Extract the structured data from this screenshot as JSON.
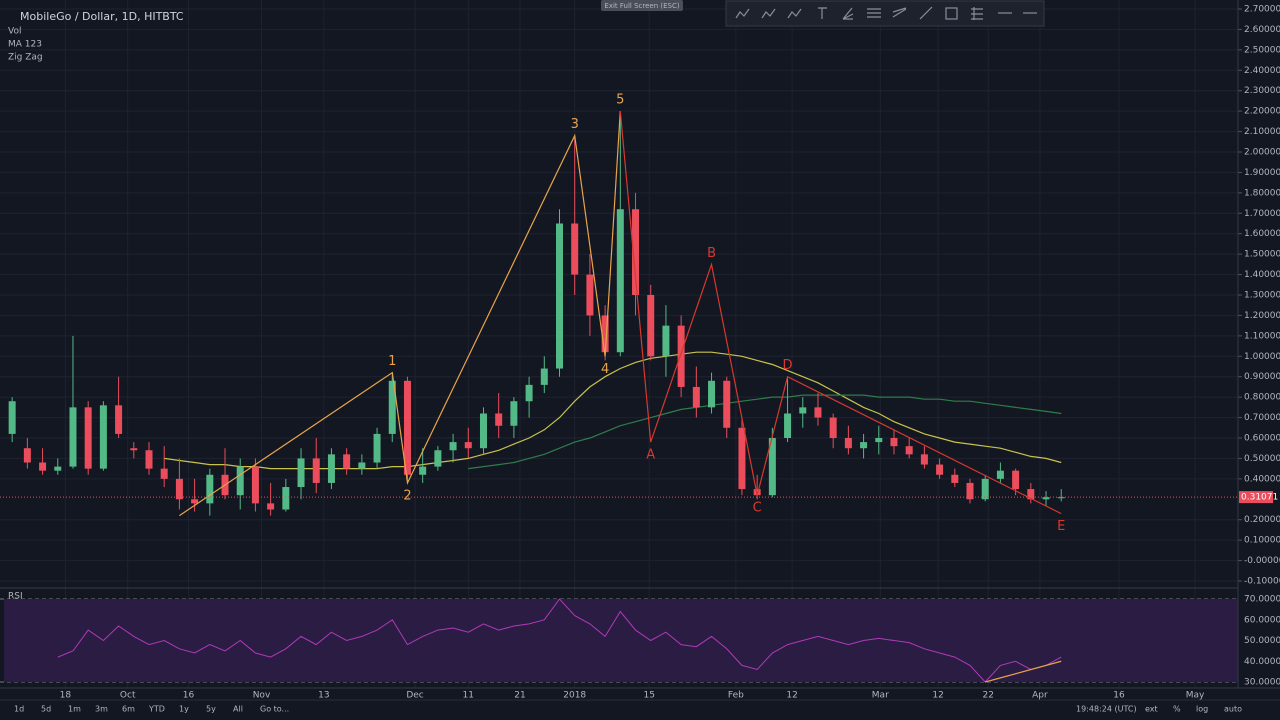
{
  "chart_data": {
    "type": "candlestick",
    "title": "MobileGo / Dollar, 1D, HITBTC",
    "indicators": [
      "Vol",
      "MA 123",
      "Zig Zag"
    ],
    "up_color": "#53b987",
    "down_color": "#eb4d5c",
    "grid": true,
    "candles": {
      "open": [
        0.62,
        0.55,
        0.48,
        0.44,
        0.46,
        0.75,
        0.45,
        0.76,
        0.55,
        0.54,
        0.45,
        0.4,
        0.3,
        0.28,
        0.42,
        0.32,
        0.46,
        0.28,
        0.25,
        0.36,
        0.5,
        0.38,
        0.52,
        0.45,
        0.48,
        0.62,
        0.88,
        0.42,
        0.46,
        0.54,
        0.58,
        0.55,
        0.72,
        0.66,
        0.78,
        0.86,
        0.94,
        1.65,
        1.4,
        1.2,
        1.02,
        1.72,
        1.3,
        1.0,
        1.15,
        0.85,
        0.75,
        0.88,
        0.65,
        0.35,
        0.32,
        0.6,
        0.72,
        0.75,
        0.7,
        0.6,
        0.55,
        0.58,
        0.6,
        0.56,
        0.52,
        0.47,
        0.42,
        0.38,
        0.3,
        0.4,
        0.44,
        0.35,
        0.3,
        0.31
      ],
      "high": [
        0.8,
        0.6,
        0.55,
        0.5,
        1.1,
        0.78,
        0.78,
        0.9,
        0.58,
        0.58,
        0.56,
        0.5,
        0.4,
        0.45,
        0.55,
        0.5,
        0.5,
        0.38,
        0.4,
        0.55,
        0.6,
        0.55,
        0.55,
        0.52,
        0.65,
        0.92,
        0.9,
        0.55,
        0.56,
        0.62,
        0.65,
        0.75,
        0.82,
        0.8,
        0.9,
        1.0,
        1.72,
        2.08,
        1.5,
        1.25,
        2.2,
        1.8,
        1.35,
        1.25,
        1.2,
        0.95,
        0.92,
        0.9,
        0.7,
        0.42,
        0.65,
        0.9,
        0.8,
        0.82,
        0.72,
        0.66,
        0.62,
        0.66,
        0.64,
        0.6,
        0.56,
        0.5,
        0.45,
        0.4,
        0.42,
        0.48,
        0.45,
        0.38,
        0.34,
        0.35
      ],
      "low": [
        0.58,
        0.45,
        0.42,
        0.42,
        0.45,
        0.42,
        0.44,
        0.6,
        0.5,
        0.42,
        0.36,
        0.25,
        0.24,
        0.22,
        0.3,
        0.25,
        0.24,
        0.22,
        0.24,
        0.3,
        0.33,
        0.35,
        0.42,
        0.42,
        0.45,
        0.58,
        0.38,
        0.38,
        0.44,
        0.48,
        0.5,
        0.52,
        0.6,
        0.6,
        0.7,
        0.82,
        0.9,
        1.3,
        1.1,
        0.98,
        1.0,
        1.2,
        0.98,
        0.9,
        0.8,
        0.7,
        0.72,
        0.6,
        0.32,
        0.3,
        0.31,
        0.58,
        0.65,
        0.66,
        0.55,
        0.52,
        0.5,
        0.52,
        0.52,
        0.5,
        0.45,
        0.4,
        0.36,
        0.28,
        0.29,
        0.38,
        0.32,
        0.28,
        0.27,
        0.29
      ],
      "close": [
        0.78,
        0.48,
        0.44,
        0.46,
        0.75,
        0.45,
        0.76,
        0.62,
        0.54,
        0.45,
        0.4,
        0.3,
        0.28,
        0.42,
        0.32,
        0.46,
        0.28,
        0.25,
        0.36,
        0.5,
        0.38,
        0.52,
        0.45,
        0.48,
        0.62,
        0.88,
        0.42,
        0.46,
        0.54,
        0.58,
        0.55,
        0.72,
        0.66,
        0.78,
        0.86,
        0.94,
        1.65,
        1.4,
        1.2,
        1.02,
        1.72,
        1.3,
        1.0,
        1.15,
        0.85,
        0.75,
        0.88,
        0.65,
        0.35,
        0.32,
        0.6,
        0.72,
        0.75,
        0.7,
        0.6,
        0.55,
        0.58,
        0.6,
        0.56,
        0.52,
        0.47,
        0.42,
        0.38,
        0.3,
        0.4,
        0.44,
        0.35,
        0.3,
        0.31,
        0.31
      ]
    },
    "series": [
      {
        "name": "MA 123",
        "color": "#c9c34a",
        "values": [
          null,
          null,
          null,
          null,
          null,
          null,
          null,
          null,
          null,
          null,
          0.5,
          0.49,
          0.48,
          0.47,
          0.47,
          0.46,
          0.46,
          0.45,
          0.45,
          0.45,
          0.45,
          0.45,
          0.45,
          0.45,
          0.45,
          0.46,
          0.46,
          0.47,
          0.48,
          0.49,
          0.5,
          0.52,
          0.54,
          0.57,
          0.6,
          0.64,
          0.7,
          0.78,
          0.85,
          0.9,
          0.94,
          0.97,
          0.99,
          1.0,
          1.01,
          1.02,
          1.02,
          1.01,
          1.0,
          0.98,
          0.96,
          0.93,
          0.9,
          0.87,
          0.83,
          0.79,
          0.75,
          0.72,
          0.68,
          0.65,
          0.62,
          0.6,
          0.58,
          0.57,
          0.56,
          0.55,
          0.53,
          0.51,
          0.5,
          0.48
        ]
      },
      {
        "color": "#2e7d4a",
        "values": [
          null,
          null,
          null,
          null,
          null,
          null,
          null,
          null,
          null,
          null,
          null,
          null,
          null,
          null,
          null,
          null,
          null,
          null,
          null,
          null,
          null,
          null,
          null,
          null,
          null,
          null,
          null,
          null,
          null,
          null,
          0.45,
          0.46,
          0.47,
          0.48,
          0.5,
          0.52,
          0.55,
          0.58,
          0.6,
          0.63,
          0.66,
          0.68,
          0.7,
          0.72,
          0.74,
          0.75,
          0.76,
          0.77,
          0.78,
          0.79,
          0.8,
          0.8,
          0.81,
          0.81,
          0.81,
          0.81,
          0.81,
          0.8,
          0.8,
          0.8,
          0.79,
          0.79,
          0.78,
          0.78,
          0.77,
          0.76,
          0.75,
          0.74,
          0.73,
          0.72
        ]
      }
    ],
    "zigzag": [
      {
        "color": "#e8a44a",
        "points": [
          {
            "x": 11,
            "y": 0.22
          },
          {
            "x": 25,
            "y": 0.92,
            "label": "1"
          },
          {
            "x": 26,
            "y": 0.38,
            "label": "2"
          },
          {
            "x": 37,
            "y": 2.08,
            "label": "3"
          },
          {
            "x": 39,
            "y": 1.0,
            "label": "4"
          },
          {
            "x": 40,
            "y": 2.2,
            "label": "5"
          }
        ]
      },
      {
        "color": "#d8382f",
        "points": [
          {
            "x": 40,
            "y": 2.2
          },
          {
            "x": 42,
            "y": 0.58,
            "label": "A"
          },
          {
            "x": 46,
            "y": 1.45,
            "label": "B"
          },
          {
            "x": 49,
            "y": 0.32,
            "label": "C"
          },
          {
            "x": 51,
            "y": 0.9,
            "label": "D"
          },
          {
            "x": 69,
            "y": 0.23,
            "label": "E"
          }
        ]
      }
    ],
    "last_price": {
      "value": 0.31071,
      "label": "0.31071"
    },
    "xlim": [
      -0.8,
      82.6
    ],
    "xticks": [
      {
        "value": 3.5,
        "label": "18"
      },
      {
        "value": 7.6,
        "label": "Oct"
      },
      {
        "value": 11.6,
        "label": "16"
      },
      {
        "value": 16.4,
        "label": "Nov"
      },
      {
        "value": 20.5,
        "label": "13"
      },
      {
        "value": 26.5,
        "label": "Dec"
      },
      {
        "value": 30,
        "label": "11"
      },
      {
        "value": 33.4,
        "label": "21"
      },
      {
        "value": 37,
        "label": "2018"
      },
      {
        "value": 41.9,
        "label": "15"
      },
      {
        "value": 47.6,
        "label": "Feb"
      },
      {
        "value": 51.3,
        "label": "12"
      },
      {
        "value": 57.1,
        "label": "Mar"
      },
      {
        "value": 60.9,
        "label": "12"
      },
      {
        "value": 64.2,
        "label": "22"
      },
      {
        "value": 67.6,
        "label": "Apr"
      },
      {
        "value": 72.8,
        "label": "16"
      },
      {
        "value": 77.8,
        "label": "May"
      }
    ],
    "ylim": [
      -0.1,
      2.7
    ],
    "yticks": [
      {
        "value": 2.7,
        "label": "2.70000"
      },
      {
        "value": 2.6,
        "label": "2.60000"
      },
      {
        "value": 2.5,
        "label": "2.50000"
      },
      {
        "value": 2.4,
        "label": "2.40000"
      },
      {
        "value": 2.3,
        "label": "2.30000"
      },
      {
        "value": 2.2,
        "label": "2.20000"
      },
      {
        "value": 2.1,
        "label": "2.10000"
      },
      {
        "value": 2.0,
        "label": "2.00000"
      },
      {
        "value": 1.9,
        "label": "1.90000"
      },
      {
        "value": 1.8,
        "label": "1.80000"
      },
      {
        "value": 1.7,
        "label": "1.70000"
      },
      {
        "value": 1.6,
        "label": "1.60000"
      },
      {
        "value": 1.5,
        "label": "1.50000"
      },
      {
        "value": 1.4,
        "label": "1.40000"
      },
      {
        "value": 1.3,
        "label": "1.30000"
      },
      {
        "value": 1.2,
        "label": "1.20000"
      },
      {
        "value": 1.1,
        "label": "1.10000"
      },
      {
        "value": 1.0,
        "label": "1.00000"
      },
      {
        "value": 0.9,
        "label": "0.90000"
      },
      {
        "value": 0.8,
        "label": "0.80000"
      },
      {
        "value": 0.7,
        "label": "0.70000"
      },
      {
        "value": 0.6,
        "label": "0.60000"
      },
      {
        "value": 0.5,
        "label": "0.50000"
      },
      {
        "value": 0.4,
        "label": "0.40000"
      },
      {
        "value": 0.2,
        "label": "0.20000"
      },
      {
        "value": 0.1,
        "label": "0.10000"
      },
      {
        "value": 0.0,
        "label": "-0.00000"
      },
      {
        "value": -0.1,
        "label": "-0.10000"
      }
    ],
    "rsi": {
      "name": "RSI",
      "color": "#b03ab8",
      "band_color": "#2a1c43",
      "values": [
        null,
        null,
        null,
        42,
        45,
        55,
        50,
        57,
        52,
        48,
        50,
        46,
        44,
        48,
        45,
        50,
        44,
        42,
        46,
        52,
        48,
        54,
        50,
        52,
        55,
        60,
        48,
        52,
        55,
        56,
        54,
        58,
        55,
        57,
        58,
        60,
        70,
        62,
        58,
        52,
        64,
        55,
        50,
        54,
        48,
        47,
        52,
        46,
        38,
        36,
        44,
        48,
        50,
        52,
        50,
        48,
        50,
        51,
        50,
        49,
        46,
        44,
        42,
        38,
        30,
        38,
        40,
        36,
        38,
        42
      ],
      "trendline": {
        "color": "#e8a44a",
        "points": [
          {
            "x": 64,
            "y": 30
          },
          {
            "x": 69,
            "y": 40
          }
        ]
      },
      "ylim": [
        30,
        70
      ],
      "yticks": [
        {
          "value": 70,
          "label": "70.0000"
        },
        {
          "value": 60,
          "label": "60.0000"
        },
        {
          "value": 50,
          "label": "50.0000"
        },
        {
          "value": 40,
          "label": "40.0000"
        },
        {
          "value": 30,
          "label": "30.0000"
        }
      ]
    }
  },
  "ui": {
    "fullscreen_hint": "Exit Full Screen (ESC)",
    "ranges": [
      "1d",
      "5d",
      "1m",
      "3m",
      "6m",
      "YTD",
      "1y",
      "5y",
      "All",
      "Go to..."
    ],
    "clock": "19:48:24 (UTC)",
    "options": [
      "ext",
      "%",
      "log",
      "auto"
    ]
  }
}
